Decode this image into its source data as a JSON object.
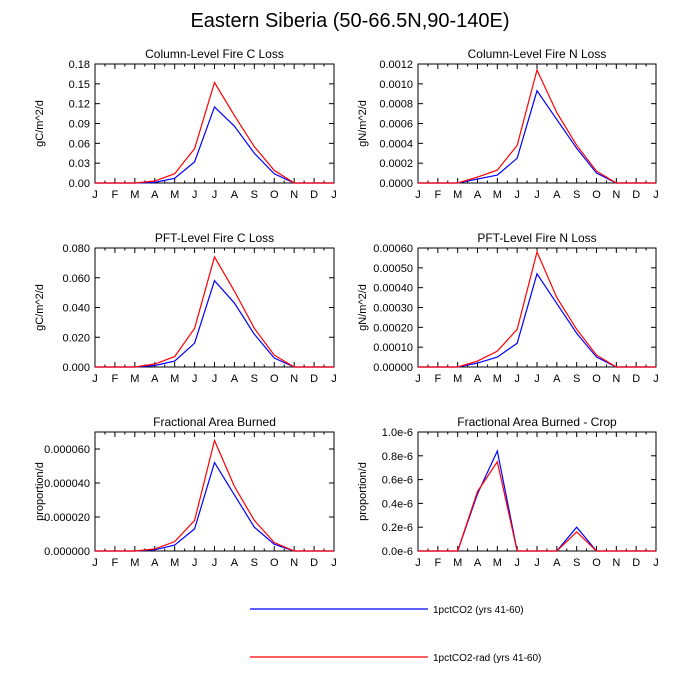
{
  "title": "Eastern Siberia (50-66.5N,90-140E)",
  "legend": [
    {
      "name": "1pctCO2 (yrs 41-60)",
      "color": "#0000ff"
    },
    {
      "name": "1pctCO2-rad (yrs 41-60)",
      "color": "#ff0000"
    }
  ],
  "chart_data": [
    {
      "type": "line",
      "title": "Column-Level Fire C Loss",
      "ylabel": "gC/m^2/d",
      "ylim": [
        0,
        0.18
      ],
      "yticks": [
        "0.00",
        "0.03",
        "0.06",
        "0.09",
        "0.12",
        "0.15",
        "0.18"
      ],
      "x": [
        "J",
        "F",
        "M",
        "A",
        "M",
        "J",
        "J",
        "A",
        "S",
        "O",
        "N",
        "D",
        "J"
      ],
      "series": [
        {
          "name": "1pctCO2 (yrs 41-60)",
          "color": "#0000ff",
          "values": [
            0,
            0,
            0,
            0.001,
            0.007,
            0.032,
            0.115,
            0.086,
            0.045,
            0.014,
            0,
            0,
            0
          ]
        },
        {
          "name": "1pctCO2-rad (yrs 41-60)",
          "color": "#ff0000",
          "values": [
            0,
            0,
            0,
            0.003,
            0.014,
            0.052,
            0.152,
            0.102,
            0.055,
            0.019,
            0,
            0,
            0
          ]
        }
      ]
    },
    {
      "type": "line",
      "title": "Column-Level Fire N Loss",
      "ylabel": "gN/m^2/d",
      "ylim": [
        0,
        0.0012
      ],
      "yticks": [
        "0.0000",
        "0.0002",
        "0.0004",
        "0.0006",
        "0.0008",
        "0.0010",
        "0.0012"
      ],
      "x": [
        "J",
        "F",
        "M",
        "A",
        "M",
        "J",
        "J",
        "A",
        "S",
        "O",
        "N",
        "D",
        "J"
      ],
      "series": [
        {
          "name": "1pctCO2 (yrs 41-60)",
          "color": "#0000ff",
          "values": [
            0,
            0,
            0,
            4e-05,
            8e-05,
            0.00025,
            0.00093,
            0.00064,
            0.00035,
            0.0001,
            0,
            0,
            0
          ]
        },
        {
          "name": "1pctCO2-rad (yrs 41-60)",
          "color": "#ff0000",
          "values": [
            0,
            0,
            0,
            6e-05,
            0.00013,
            0.00038,
            0.00114,
            0.00071,
            0.00038,
            0.00012,
            0,
            0,
            0
          ]
        }
      ]
    },
    {
      "type": "line",
      "title": "PFT-Level Fire C Loss",
      "ylabel": "gC/m^2/d",
      "ylim": [
        0,
        0.08
      ],
      "yticks": [
        "0.000",
        "0.020",
        "0.040",
        "0.060",
        "0.080"
      ],
      "x": [
        "J",
        "F",
        "M",
        "A",
        "M",
        "J",
        "J",
        "A",
        "S",
        "O",
        "N",
        "D",
        "J"
      ],
      "series": [
        {
          "name": "1pctCO2 (yrs 41-60)",
          "color": "#0000ff",
          "values": [
            0,
            0,
            0,
            0.001,
            0.004,
            0.016,
            0.058,
            0.043,
            0.022,
            0.006,
            0,
            0,
            0
          ]
        },
        {
          "name": "1pctCO2-rad (yrs 41-60)",
          "color": "#ff0000",
          "values": [
            0,
            0,
            0,
            0.002,
            0.007,
            0.026,
            0.074,
            0.051,
            0.026,
            0.008,
            0,
            0,
            0
          ]
        }
      ]
    },
    {
      "type": "line",
      "title": "PFT-Level Fire N Loss",
      "ylabel": "gN/m^2/d",
      "ylim": [
        0,
        0.0006
      ],
      "yticks": [
        "0.00000",
        "0.00010",
        "0.00020",
        "0.00030",
        "0.00040",
        "0.00050",
        "0.00060"
      ],
      "x": [
        "J",
        "F",
        "M",
        "A",
        "M",
        "J",
        "J",
        "A",
        "S",
        "O",
        "N",
        "D",
        "J"
      ],
      "series": [
        {
          "name": "1pctCO2 (yrs 41-60)",
          "color": "#0000ff",
          "values": [
            0,
            0,
            0,
            2e-05,
            5e-05,
            0.00012,
            0.00047,
            0.00032,
            0.00017,
            5e-05,
            0,
            0,
            0
          ]
        },
        {
          "name": "1pctCO2-rad (yrs 41-60)",
          "color": "#ff0000",
          "values": [
            0,
            0,
            0,
            3e-05,
            8e-05,
            0.00019,
            0.00058,
            0.00035,
            0.00019,
            6e-05,
            0,
            0,
            0
          ]
        }
      ]
    },
    {
      "type": "line",
      "title": "Fractional Area Burned",
      "ylabel": "proportion/d",
      "ylim": [
        0,
        7e-05
      ],
      "yticks": [
        "0.000000",
        "0.000020",
        "0.000040",
        "0.000060"
      ],
      "ytick_values": [
        0,
        2e-05,
        4e-05,
        6e-05
      ],
      "x": [
        "J",
        "F",
        "M",
        "A",
        "M",
        "J",
        "J",
        "A",
        "S",
        "O",
        "N",
        "D",
        "J"
      ],
      "series": [
        {
          "name": "1pctCO2 (yrs 41-60)",
          "color": "#0000ff",
          "values": [
            0,
            0,
            0,
            7e-07,
            3.5e-06,
            1.3e-05,
            5.2e-05,
            3.3e-05,
            1.4e-05,
            4e-06,
            0,
            0,
            0
          ]
        },
        {
          "name": "1pctCO2-rad (yrs 41-60)",
          "color": "#ff0000",
          "values": [
            0,
            0,
            0,
            1.2e-06,
            5.5e-06,
            1.8e-05,
            6.5e-05,
            3.8e-05,
            1.8e-05,
            5e-06,
            0,
            0,
            0
          ]
        }
      ]
    },
    {
      "type": "line",
      "title": "Fractional Area Burned - Crop",
      "ylabel": "proportion/d",
      "ylim": [
        0,
        1e-06
      ],
      "yticks": [
        "0.0e-6",
        "0.2e-6",
        "0.4e-6",
        "0.6e-6",
        "0.8e-6",
        "1.0e-6"
      ],
      "x": [
        "J",
        "F",
        "M",
        "A",
        "M",
        "J",
        "J",
        "A",
        "S",
        "O",
        "N",
        "D",
        "J"
      ],
      "series": [
        {
          "name": "1pctCO2 (yrs 41-60)",
          "color": "#0000ff",
          "values": [
            0,
            0,
            0,
            4.8e-07,
            8.4e-07,
            0,
            0,
            0,
            2e-07,
            0,
            0,
            0,
            0
          ]
        },
        {
          "name": "1pctCO2-rad (yrs 41-60)",
          "color": "#ff0000",
          "values": [
            0,
            0,
            0,
            5e-07,
            7.5e-07,
            0,
            0,
            0,
            1.6e-07,
            0,
            0,
            0,
            0
          ]
        }
      ]
    }
  ]
}
